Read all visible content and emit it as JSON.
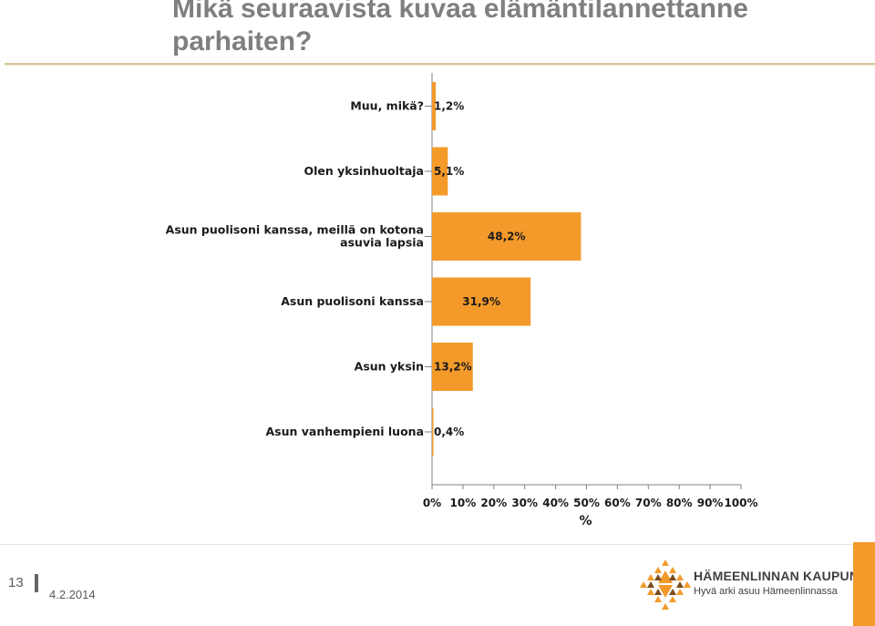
{
  "slide": {
    "title": "Mikä seuraavista kuvaa elämäntilannettanne parhaiten?",
    "page_number": "13",
    "date": "4.2.2014",
    "accent_color": "#f39a2a"
  },
  "logo": {
    "name": "HÄMEENLINNAN KAUPUNKI",
    "tagline": "Hyvä arki asuu Hämeenlinnassa",
    "icon": "hameenlinna-crest-icon"
  },
  "chart_data": {
    "type": "bar",
    "orientation": "horizontal",
    "categories": [
      "Muu, mikä?",
      "Olen yksinhuoltaja",
      "Asun puolisoni kanssa, meillä on kotona asuvia lapsia",
      "Asun puolisoni kanssa",
      "Asun yksin",
      "Asun vanhempieni luona"
    ],
    "category_label_lines": [
      [
        "Muu, mikä?"
      ],
      [
        "Olen yksinhuoltaja"
      ],
      [
        "Asun puolisoni kanssa, meillä on kotona",
        "asuvia lapsia"
      ],
      [
        "Asun puolisoni kanssa"
      ],
      [
        "Asun yksin"
      ],
      [
        "Asun vanhempieni luona"
      ]
    ],
    "values": [
      1.2,
      5.1,
      48.2,
      31.9,
      13.2,
      0.4
    ],
    "data_labels": [
      "1,2%",
      "5,1%",
      "48,2%",
      "31,9%",
      "13,2%",
      "0,4%"
    ],
    "xlabel": "%",
    "xlim": [
      0,
      100
    ],
    "x_ticks": [
      "0%",
      "10%",
      "20%",
      "30%",
      "40%",
      "50%",
      "60%",
      "70%",
      "80%",
      "90%",
      "100%"
    ],
    "bar_color": "#f39a2a",
    "grid": false
  }
}
